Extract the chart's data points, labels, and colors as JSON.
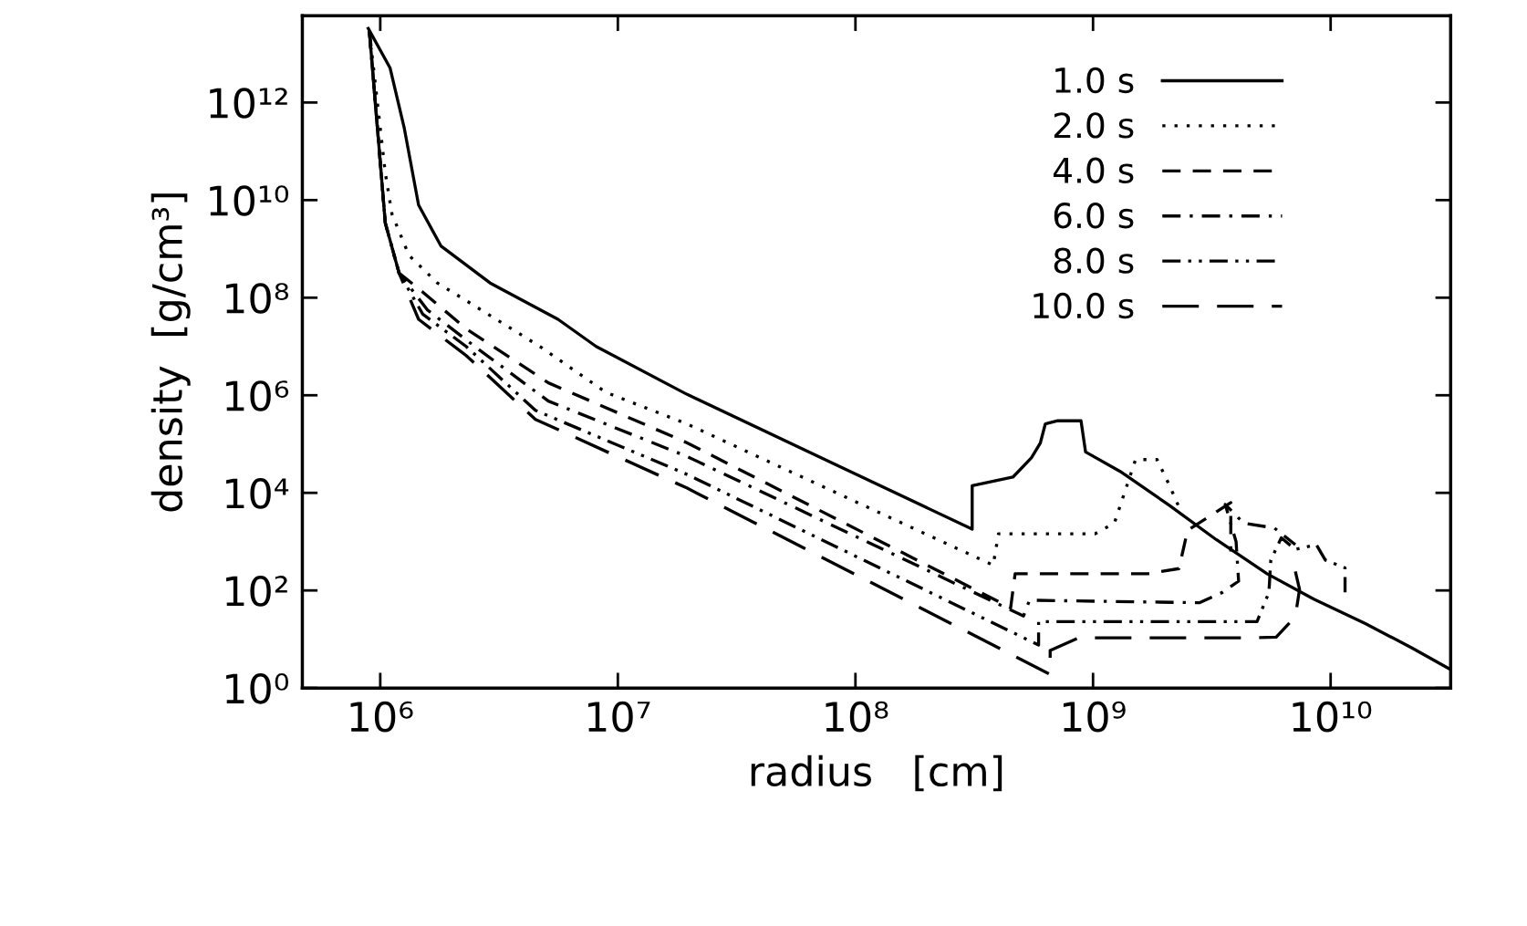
{
  "chart_data": {
    "type": "line",
    "xlabel": "radius   [cm]",
    "ylabel": "density  [g/cm³]",
    "log": "xy",
    "grid": false,
    "legend": "top right",
    "xlim": [
      470000,
      32000000000
    ],
    "ylim": [
      1,
      60000000000000
    ],
    "xticks": [
      {
        "value": 1000000,
        "label": "10⁶"
      },
      {
        "value": 10000000,
        "label": "10⁷"
      },
      {
        "value": 100000000,
        "label": "10⁸"
      },
      {
        "value": 1000000000,
        "label": "10⁹"
      },
      {
        "value": 10000000000,
        "label": "10¹⁰"
      }
    ],
    "yticks": [
      {
        "value": 1,
        "label": "10⁰"
      },
      {
        "value": 100,
        "label": "10²"
      },
      {
        "value": 10000,
        "label": "10⁴"
      },
      {
        "value": 1000000,
        "label": "10⁶"
      },
      {
        "value": 100000000,
        "label": "10⁸"
      },
      {
        "value": 10000000000,
        "label": "10¹⁰"
      },
      {
        "value": 1000000000000,
        "label": "10¹²"
      }
    ],
    "series": [
      {
        "name": "1.0 s",
        "color": "#000000",
        "line_style": "solid",
        "x": [
          890000,
          1100000,
          1260000,
          1450000,
          1800000,
          2900000,
          5600000,
          8100000,
          19500000,
          310000000,
          310000000,
          460000000,
          550000000,
          600000000,
          630000000,
          710000000,
          890000000,
          930000000,
          1300000000,
          2100000000,
          3300000000,
          5400000000,
          8500000000,
          14000000000,
          22000000000,
          31500000000
        ],
        "values": [
          33000000000000,
          5100000000000,
          310000000000,
          7900000000,
          1150000000,
          200000000,
          36000000,
          10000000,
          1050000,
          1800,
          14000,
          21000,
          52000,
          105000,
          260000,
          300000,
          300000,
          69000,
          27500,
          5500,
          1100,
          220,
          66,
          21,
          6.6,
          2.5
        ]
      },
      {
        "name": "2.0 s",
        "color": "#000000",
        "line_style": "dotted",
        "x": [
          900000,
          1050000,
          1120000,
          1320000,
          1740000,
          2300000,
          4700000,
          8900000,
          19500000,
          380000000,
          400000000,
          1020000000,
          1230000000,
          1510000000,
          1860000000,
          2100000000,
          2300000000
        ],
        "values": [
          29000000000000,
          36000000000,
          5200000000,
          740000000,
          200000000,
          87000000,
          10000000,
          1150000,
          260000,
          330,
          1450,
          1450,
          2400,
          48000,
          48000,
          14000,
          5100
        ]
      },
      {
        "name": "4.0 s",
        "color": "#000000",
        "line_style": "dashed",
        "x": [
          900000,
          1050000,
          1200000,
          1510000,
          2300000,
          5100000,
          19500000,
          450000000,
          470000000,
          1700000000,
          2300000000,
          2500000000,
          3800000000,
          3800000000
        ],
        "values": [
          29000000000000,
          3400000000,
          320000000,
          130000000,
          23000000,
          1800000,
          107000,
          44,
          220,
          220,
          280,
          1700,
          6300,
          630
        ]
      },
      {
        "name": "6.0 s",
        "color": "#000000",
        "line_style": "dashdot",
        "x": [
          900000,
          1050000,
          1200000,
          1580000,
          2500000,
          5100000,
          19500000,
          510000000,
          540000000,
          2800000000,
          3500000000,
          4100000000,
          4000000000,
          3600000000,
          4300000000,
          5800000000,
          7100000000
        ],
        "values": [
          29000000000000,
          3400000000,
          320000000,
          56000000,
          10000000,
          760000,
          56000,
          30,
          63,
          56,
          91,
          155,
          1000,
          5800,
          2400,
          1900,
          870
        ]
      },
      {
        "name": "8.0 s",
        "color": "#000000",
        "line_style": "dashdotdot",
        "x": [
          900000,
          1050000,
          1200000,
          1510000,
          2300000,
          4500000,
          19500000,
          590000000,
          590000000,
          4900000000,
          5500000000,
          5600000000,
          6200000000,
          7100000000,
          8700000000,
          9500000000,
          11500000000,
          11500000000
        ],
        "values": [
          29000000000000,
          3400000000,
          320000000,
          46000000,
          10000000,
          490000,
          24000,
          7.6,
          23,
          23,
          91,
          420,
          1200,
          690,
          870,
          420,
          290,
          91
        ]
      },
      {
        "name": "10.0 s",
        "color": "#000000",
        "line_style": "longdash",
        "x": [
          900000,
          1050000,
          1200000,
          1450000,
          2300000,
          4500000,
          19500000,
          660000000,
          660000000,
          870000000,
          4500000000,
          5900000000,
          7100000000,
          7400000000,
          7100000000
        ],
        "values": [
          29000000000000,
          3400000000,
          320000000,
          36000000,
          6500000,
          320000,
          12600,
          1.9,
          5.9,
          10.7,
          10.7,
          11,
          29,
          105,
          250
        ]
      }
    ]
  }
}
